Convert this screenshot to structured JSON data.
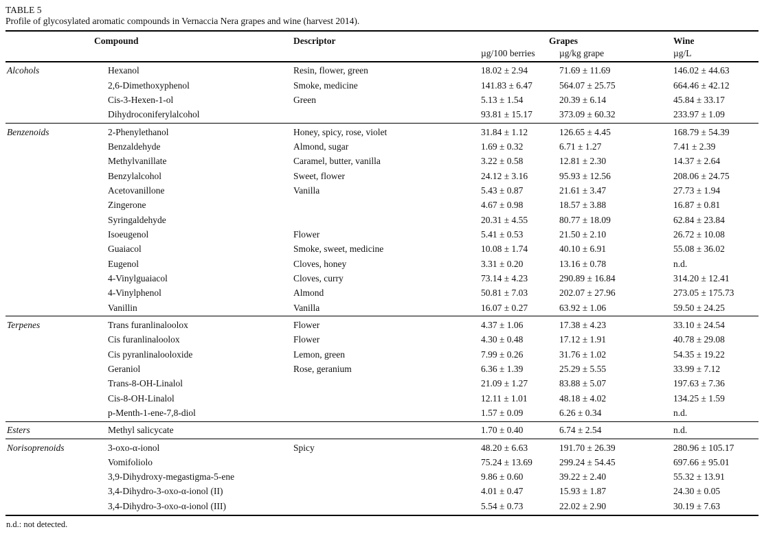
{
  "title": "TABLE 5",
  "caption": "Profile of glycosylated aromatic compounds in Vernaccia Nera grapes and wine (harvest 2014).",
  "header": {
    "compound": "Compound",
    "descriptor": "Descriptor",
    "grapes_group": "Grapes",
    "wine_group": "Wine",
    "unit_berries": "µg/100 berries",
    "unit_kg_grape": "µg/kg grape",
    "unit_wine": "µg/L"
  },
  "sections": [
    {
      "category": "Alcohols",
      "rows": [
        {
          "compound": "Hexanol",
          "descriptor": "Resin, flower, green",
          "berries": "18.02 ± 2.94",
          "kg": "71.69 ± 11.69",
          "wine": "146.02 ± 44.63"
        },
        {
          "compound": "2,6-Dimethoxyphenol",
          "descriptor": "Smoke, medicine",
          "berries": "141.83 ± 6.47",
          "kg": "564.07 ± 25.75",
          "wine": "664.46 ± 42.12"
        },
        {
          "compound": "Cis-3-Hexen-1-ol",
          "descriptor": "Green",
          "berries": "5.13 ± 1.54",
          "kg": "20.39 ± 6.14",
          "wine": "45.84 ± 33.17"
        },
        {
          "compound": "Dihydroconiferylalcohol",
          "descriptor": "",
          "berries": "93.81 ± 15.17",
          "kg": "373.09 ± 60.32",
          "wine": "233.97 ± 1.09"
        }
      ]
    },
    {
      "category": "Benzenoids",
      "rows": [
        {
          "compound": "2-Phenylethanol",
          "descriptor": "Honey, spicy, rose, violet",
          "berries": "31.84 ± 1.12",
          "kg": "126.65 ± 4.45",
          "wine": "168.79 ± 54.39"
        },
        {
          "compound": "Benzaldehyde",
          "descriptor": "Almond, sugar",
          "berries": "1.69 ± 0.32",
          "kg": "6.71 ± 1.27",
          "wine": "7.41 ± 2.39"
        },
        {
          "compound": "Methylvanillate",
          "descriptor": "Caramel, butter, vanilla",
          "berries": "3.22 ± 0.58",
          "kg": "12.81 ± 2.30",
          "wine": "14.37 ± 2.64"
        },
        {
          "compound": "Benzylalcohol",
          "descriptor": "Sweet, flower",
          "berries": "24.12 ± 3.16",
          "kg": "95.93 ± 12.56",
          "wine": "208.06 ± 24.75"
        },
        {
          "compound": "Acetovanillone",
          "descriptor": "Vanilla",
          "berries": "5.43 ± 0.87",
          "kg": "21.61 ± 3.47",
          "wine": "27.73 ± 1.94"
        },
        {
          "compound": "Zingerone",
          "descriptor": "",
          "berries": "4.67 ± 0.98",
          "kg": "18.57 ± 3.88",
          "wine": "16.87 ± 0.81"
        },
        {
          "compound": "Syringaldehyde",
          "descriptor": "",
          "berries": "20.31 ± 4.55",
          "kg": "80.77 ± 18.09",
          "wine": "62.84 ± 23.84"
        },
        {
          "compound": "Isoeugenol",
          "descriptor": "Flower",
          "berries": "5.41 ± 0.53",
          "kg": "21.50 ± 2.10",
          "wine": "26.72 ± 10.08"
        },
        {
          "compound": "Guaiacol",
          "descriptor": "Smoke, sweet, medicine",
          "berries": "10.08 ± 1.74",
          "kg": "40.10 ± 6.91",
          "wine": "55.08 ± 36.02"
        },
        {
          "compound": "Eugenol",
          "descriptor": "Cloves, honey",
          "berries": "3.31 ± 0.20",
          "kg": "13.16 ± 0.78",
          "wine": "n.d."
        },
        {
          "compound": "4-Vinylguaiacol",
          "descriptor": "Cloves, curry",
          "berries": "73.14 ± 4.23",
          "kg": "290.89 ± 16.84",
          "wine": "314.20 ± 12.41"
        },
        {
          "compound": "4-Vinylphenol",
          "descriptor": "Almond",
          "berries": "50.81 ± 7.03",
          "kg": "202.07 ± 27.96",
          "wine": "273.05 ± 175.73"
        },
        {
          "compound": "Vanillin",
          "descriptor": "Vanilla",
          "berries": "16.07 ± 0.27",
          "kg": "63.92 ± 1.06",
          "wine": "59.50 ± 24.25"
        }
      ]
    },
    {
      "category": "Terpenes",
      "rows": [
        {
          "compound": "Trans furanlinaloolox",
          "descriptor": "Flower",
          "berries": "4.37 ± 1.06",
          "kg": "17.38 ± 4.23",
          "wine": "33.10 ± 24.54"
        },
        {
          "compound": "Cis furanlinaloolox",
          "descriptor": "Flower",
          "berries": "4.30 ± 0.48",
          "kg": "17.12 ± 1.91",
          "wine": "40.78 ± 29.08"
        },
        {
          "compound": "Cis pyranlinalooloxide",
          "descriptor": "Lemon, green",
          "berries": "7.99 ± 0.26",
          "kg": "31.76 ± 1.02",
          "wine": "54.35 ± 19.22"
        },
        {
          "compound": "Geraniol",
          "descriptor": "Rose, geranium",
          "berries": "6.36 ± 1.39",
          "kg": "25.29 ± 5.55",
          "wine": "33.99 ± 7.12"
        },
        {
          "compound": "Trans-8-OH-Linalol",
          "descriptor": "",
          "berries": "21.09 ± 1.27",
          "kg": "83.88 ± 5.07",
          "wine": "197.63 ± 7.36"
        },
        {
          "compound": "Cis-8-OH-Linalol",
          "descriptor": "",
          "berries": "12.11 ± 1.01",
          "kg": "48.18 ± 4.02",
          "wine": "134.25 ± 1.59"
        },
        {
          "compound": "p-Menth-1-ene-7,8-diol",
          "descriptor": "",
          "berries": "1.57 ± 0.09",
          "kg": "6.26 ± 0.34",
          "wine": "n.d."
        }
      ]
    },
    {
      "category": "Esters",
      "rows": [
        {
          "compound": "Methyl salicycate",
          "descriptor": "",
          "berries": "1.70 ± 0.40",
          "kg": "6.74 ± 2.54",
          "wine": "n.d."
        }
      ]
    },
    {
      "category": "Norisoprenoids",
      "rows": [
        {
          "compound": "3-oxo-α-ionol",
          "descriptor": "Spicy",
          "berries": "48.20 ± 6.63",
          "kg": "191.70 ± 26.39",
          "wine": "280.96 ± 105.17"
        },
        {
          "compound": "Vomifoliolo",
          "descriptor": "",
          "berries": "75.24 ± 13.69",
          "kg": "299.24 ± 54.45",
          "wine": "697.66 ± 95.01"
        },
        {
          "compound": "3,9-Dihydroxy-megastigma-5-ene",
          "descriptor": "",
          "berries": "9.86 ± 0.60",
          "kg": "39.22 ± 2.40",
          "wine": "55.32 ± 13.91"
        },
        {
          "compound": "3,4-Dihydro-3-oxo-α-ionol (II)",
          "descriptor": "",
          "berries": "4.01 ± 0.47",
          "kg": "15.93 ± 1.87",
          "wine": "24.30 ± 0.05"
        },
        {
          "compound": "3,4-Dihydro-3-oxo-α-ionol (III)",
          "descriptor": "",
          "berries": "5.54 ± 0.73",
          "kg": "22.02 ± 2.90",
          "wine": "30.19 ± 7.63"
        }
      ]
    }
  ],
  "footnote": "n.d.: not detected."
}
